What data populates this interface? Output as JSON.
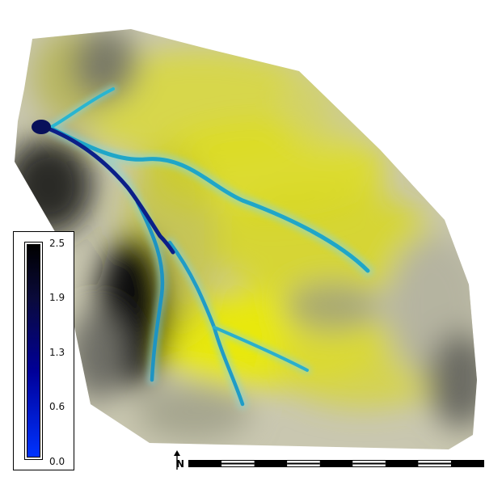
{
  "map": {
    "layer": "stream-network-intensity",
    "terrain_colors": {
      "low": "#111111",
      "mid": "#c8c8b4",
      "high": "#dede10"
    },
    "stream_colors": {
      "minor": "#22a6c8",
      "major": "#0a1a7a",
      "outlet": "#08105a"
    }
  },
  "legend": {
    "ticks": [
      "2.5",
      "1.9",
      "1.3",
      "0.6",
      "0.0"
    ],
    "max_value": 2.5,
    "min_value": 0.0,
    "color_max": "#000000",
    "color_min": "#0033ff"
  },
  "north_arrow": {
    "label": "N",
    "icon": "north-arrow-icon"
  },
  "scale_bar": {
    "segments": 9
  }
}
